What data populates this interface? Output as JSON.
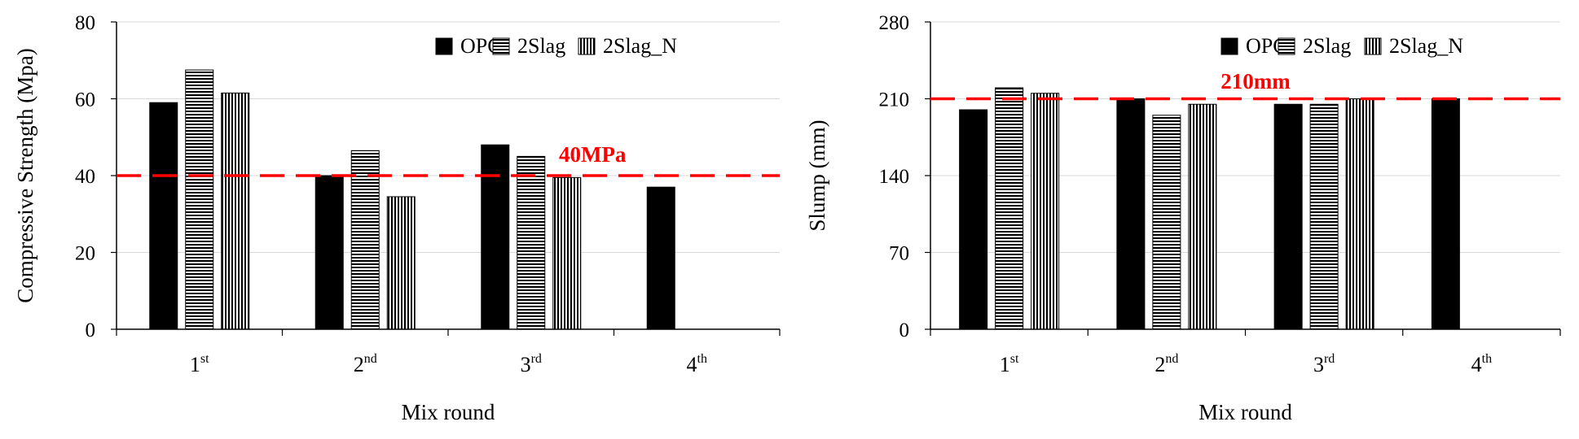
{
  "chart_data": [
    {
      "type": "bar",
      "categories": [
        {
          "base": "1",
          "sup": "st"
        },
        {
          "base": "2",
          "sup": "nd"
        },
        {
          "base": "3",
          "sup": "rd"
        },
        {
          "base": "4",
          "sup": "th"
        }
      ],
      "series": [
        {
          "name": "OPC",
          "pattern": "solid",
          "values": [
            59,
            40,
            48,
            37
          ]
        },
        {
          "name": "2Slag",
          "pattern": "horizontal",
          "values": [
            67.5,
            46.5,
            45,
            null
          ]
        },
        {
          "name": "2Slag_N",
          "pattern": "vertical",
          "values": [
            61.5,
            34.5,
            39.5,
            null
          ]
        }
      ],
      "xlabel": "Mix round",
      "ylabel": "Compressive Strength (Mpa)",
      "ylim": [
        0,
        80
      ],
      "yticks": [
        0,
        20,
        40,
        60,
        80
      ],
      "grid": true,
      "legend_position": "top-right",
      "reference_line": {
        "value": 40,
        "label": "40MPa",
        "color": "#ff0000",
        "style": "dashed"
      }
    },
    {
      "type": "bar",
      "categories": [
        {
          "base": "1",
          "sup": "st"
        },
        {
          "base": "2",
          "sup": "nd"
        },
        {
          "base": "3",
          "sup": "rd"
        },
        {
          "base": "4",
          "sup": "th"
        }
      ],
      "series": [
        {
          "name": "OPC",
          "pattern": "solid",
          "values": [
            200,
            210,
            205,
            210
          ]
        },
        {
          "name": "2Slag",
          "pattern": "horizontal",
          "values": [
            220,
            195,
            205,
            null
          ]
        },
        {
          "name": "2Slag_N",
          "pattern": "vertical",
          "values": [
            215,
            205,
            210,
            null
          ]
        }
      ],
      "xlabel": "Mix round",
      "ylabel": "Slump (mm)",
      "ylim": [
        0,
        280
      ],
      "yticks": [
        0,
        70,
        140,
        210,
        280
      ],
      "grid": true,
      "legend_position": "top-right",
      "reference_line": {
        "value": 210,
        "label": "210mm",
        "color": "#ff0000",
        "style": "dashed"
      }
    }
  ]
}
